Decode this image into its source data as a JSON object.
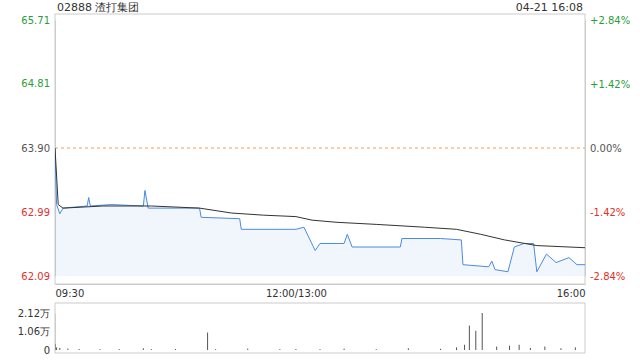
{
  "chart_data": [
    {
      "type": "line",
      "title": "02888 渣打集团",
      "subtitle": "04-21 16:08",
      "xlim": [
        0,
        330
      ],
      "xticks": [
        {
          "value": 0,
          "label": "09:30"
        },
        {
          "value": 150,
          "label": "12:00/13:00"
        },
        {
          "value": 330,
          "label": "16:00"
        }
      ],
      "ylim": [
        62.09,
        65.71
      ],
      "yticks": [
        65.71,
        64.81,
        {
          "value": 63.9,
          "label": "63.90"
        },
        62.99,
        62.09
      ],
      "y2lim": [
        -2.84,
        2.84
      ],
      "y2ticks": [
        {
          "value": 2.84,
          "label": "+2.84%"
        },
        {
          "value": 1.42,
          "label": "+1.42%"
        },
        {
          "value": 0,
          "label": "0.00%"
        },
        {
          "value": -1.42,
          "label": "-1.42%"
        },
        {
          "value": -2.84,
          "label": "-2.84%"
        }
      ],
      "grid": false,
      "series": [
        {
          "color": "#4a8be0",
          "x": [
            0,
            1,
            3,
            5,
            20,
            21,
            22,
            35,
            55,
            56,
            58,
            90,
            91,
            115,
            116,
            150,
            155,
            162,
            165,
            180,
            182,
            185,
            215,
            216,
            240,
            253,
            254,
            270,
            272,
            274,
            282,
            286,
            292,
            298,
            300,
            306,
            312,
            320,
            325,
            330
          ],
          "values": [
            63.9,
            63.1,
            62.97,
            63.05,
            63.08,
            63.2,
            63.08,
            63.1,
            63.08,
            63.3,
            63.05,
            63.05,
            62.92,
            62.9,
            62.75,
            62.75,
            62.78,
            62.45,
            62.55,
            62.55,
            62.68,
            62.5,
            62.5,
            62.62,
            62.62,
            62.6,
            62.25,
            62.22,
            62.3,
            62.18,
            62.15,
            62.5,
            62.55,
            62.55,
            62.15,
            62.4,
            62.28,
            62.35,
            62.25,
            62.25
          ]
        },
        {
          "color": "#333333",
          "x": [
            0,
            2,
            5,
            30,
            60,
            90,
            110,
            130,
            150,
            160,
            175,
            200,
            230,
            250,
            265,
            280,
            300,
            330
          ],
          "values": [
            63.9,
            63.1,
            63.05,
            63.08,
            63.08,
            63.05,
            62.98,
            62.95,
            62.93,
            62.88,
            62.85,
            62.82,
            62.78,
            62.75,
            62.68,
            62.6,
            62.52,
            62.49
          ]
        }
      ]
    },
    {
      "type": "bar",
      "xlim": [
        0,
        330
      ],
      "ylim": [
        0,
        2.12
      ],
      "yticks": [
        {
          "value": 2.12,
          "label": "2.12万"
        },
        {
          "value": 1.06,
          "label": "1.06万"
        },
        0
      ],
      "tick_labels": "y",
      "color": "#555555",
      "x": [
        0,
        1,
        3,
        8,
        15,
        28,
        40,
        55,
        60,
        75,
        95,
        100,
        120,
        140,
        150,
        165,
        180,
        200,
        220,
        240,
        250,
        255,
        258,
        262,
        266,
        275,
        283,
        289,
        296,
        305,
        315,
        324
      ],
      "values": [
        0.35,
        0.15,
        0.12,
        0.08,
        0.06,
        0.05,
        0.05,
        0.1,
        0.05,
        0.06,
        1.0,
        0.05,
        0.08,
        0.05,
        0.06,
        0.05,
        0.08,
        0.05,
        0.1,
        0.07,
        0.15,
        0.3,
        1.4,
        1.1,
        2.12,
        0.2,
        0.25,
        0.3,
        0.12,
        0.2,
        0.1,
        0.15
      ]
    }
  ]
}
